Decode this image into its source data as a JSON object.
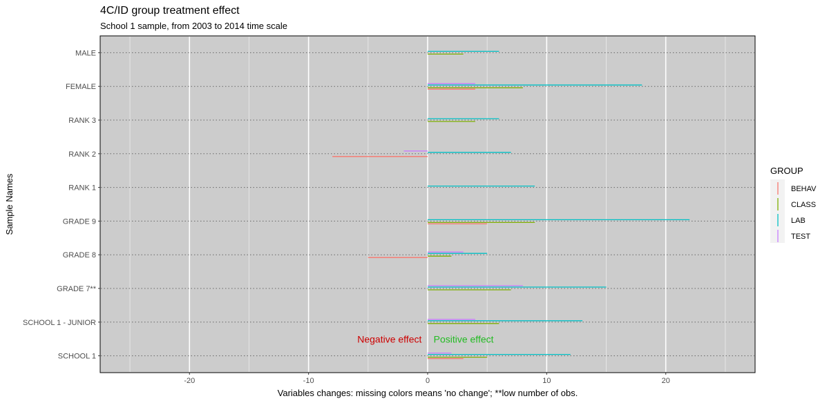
{
  "chart_data": {
    "type": "bar",
    "orientation": "horizontal",
    "title": "4C/ID group treatment effect",
    "subtitle": "School 1 sample, from 2003 to 2014 time scale",
    "xlabel": "Variables changes: missing colors means 'no change'; **low number of obs.",
    "ylabel": "Sample Names",
    "xlim": [
      -27.5,
      27.5
    ],
    "x_ticks": [
      -20,
      -10,
      0,
      10,
      20
    ],
    "grid": true,
    "legend": {
      "title": "GROUP",
      "position": "right"
    },
    "series_colors": {
      "BEHAV": "#F8766D",
      "CLASS": "#7CAE00",
      "LAB": "#00BFC4",
      "TEST": "#C77CFF"
    },
    "categories": [
      "MALE",
      "FEMALE",
      "RANK 3",
      "RANK 2",
      "RANK 1",
      "GRADE 9",
      "GRADE 8",
      "GRADE 7**",
      "SCHOOL 1 - JUNIOR",
      "SCHOOL 1"
    ],
    "series": [
      {
        "name": "BEHAV",
        "values": [
          null,
          4,
          null,
          -8,
          null,
          5,
          -5,
          null,
          null,
          3
        ]
      },
      {
        "name": "CLASS",
        "values": [
          3,
          8,
          4,
          null,
          null,
          9,
          2,
          7,
          6,
          5
        ]
      },
      {
        "name": "LAB",
        "values": [
          6,
          18,
          6,
          7,
          9,
          22,
          5,
          15,
          13,
          12
        ]
      },
      {
        "name": "TEST",
        "values": [
          null,
          4,
          null,
          -2,
          null,
          null,
          3,
          8,
          4,
          2
        ]
      }
    ],
    "annotations": [
      {
        "text": "Negative effect",
        "x": -0.5,
        "y": "SCHOOL 1",
        "align": "right",
        "color": "#cc0000"
      },
      {
        "text": "Positive effect",
        "x": 0.5,
        "y": "SCHOOL 1",
        "align": "left",
        "color": "#22bb22"
      }
    ]
  }
}
